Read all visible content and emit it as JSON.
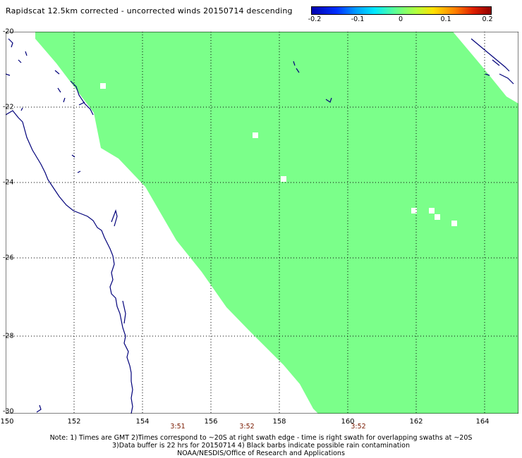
{
  "header": {
    "title": "Rapidscat 12.5km corrected - uncorrected winds 20150714 descending"
  },
  "colorbar": {
    "ticks": [
      "-0.2",
      "-0.1",
      "0",
      "0.1",
      "0.2"
    ],
    "values": [
      -0.2,
      -0.1,
      0,
      0.1,
      0.2
    ]
  },
  "map": {
    "lat_labels": [
      "-20",
      "-22",
      "-24",
      "-26",
      "-28",
      "-30"
    ],
    "lon_labels": [
      "150",
      "152",
      "154",
      "156",
      "158",
      "160",
      "162",
      "164"
    ],
    "lon_range": [
      150,
      165
    ],
    "lat_range": [
      -30,
      -20
    ],
    "swath_color": "#7bff8a",
    "gridline_style": "dotted",
    "coastline_color": "#00007a"
  },
  "times": [
    {
      "label": "3:51",
      "lon": 154.9
    },
    {
      "label": "3:52",
      "lon": 157.1
    },
    {
      "label": "3:52",
      "lon": 160.3
    }
  ],
  "footer": {
    "note_line1": "Note: 1) Times are GMT 2)Times correspond to ~20S at right swath edge - time is right swath for overlapping swaths at ~20S",
    "note_line2": "3)Data buffer is 22 hrs for 20150714 4) Black barbs indicate possible rain contamination",
    "credit": "NOAA/NESDIS/Office of Research and Applications"
  }
}
